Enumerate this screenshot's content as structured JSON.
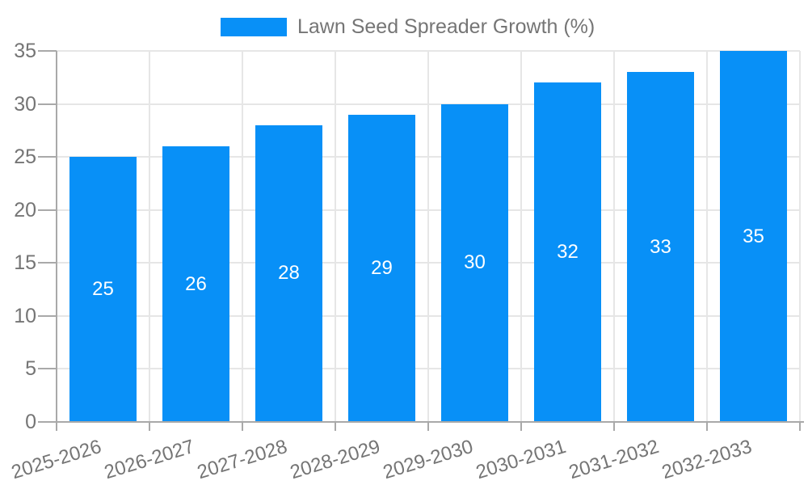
{
  "chart_data": {
    "type": "bar",
    "categories": [
      "2025-2026",
      "2026-2027",
      "2027-2028",
      "2028-2029",
      "2029-2030",
      "2030-2031",
      "2031-2032",
      "2032-2033"
    ],
    "series": [
      {
        "name": "Lawn Seed Spreader Growth (%)",
        "values": [
          25,
          26,
          28,
          29,
          30,
          32,
          33,
          35
        ]
      }
    ],
    "title": "",
    "xlabel": "",
    "ylabel": "",
    "ylim": [
      0,
      35
    ],
    "ytick_step": 5,
    "yticks": [
      0,
      5,
      10,
      15,
      20,
      25,
      30,
      35
    ],
    "grid": true,
    "legend_position": "top",
    "x_label_rotation_deg": -17,
    "colors": {
      "bar": "#0890f7",
      "bar_label": "#ffffff",
      "axis": "#a9a9a9",
      "grid": "#e6e6e6",
      "tick_label": "#757575"
    }
  }
}
